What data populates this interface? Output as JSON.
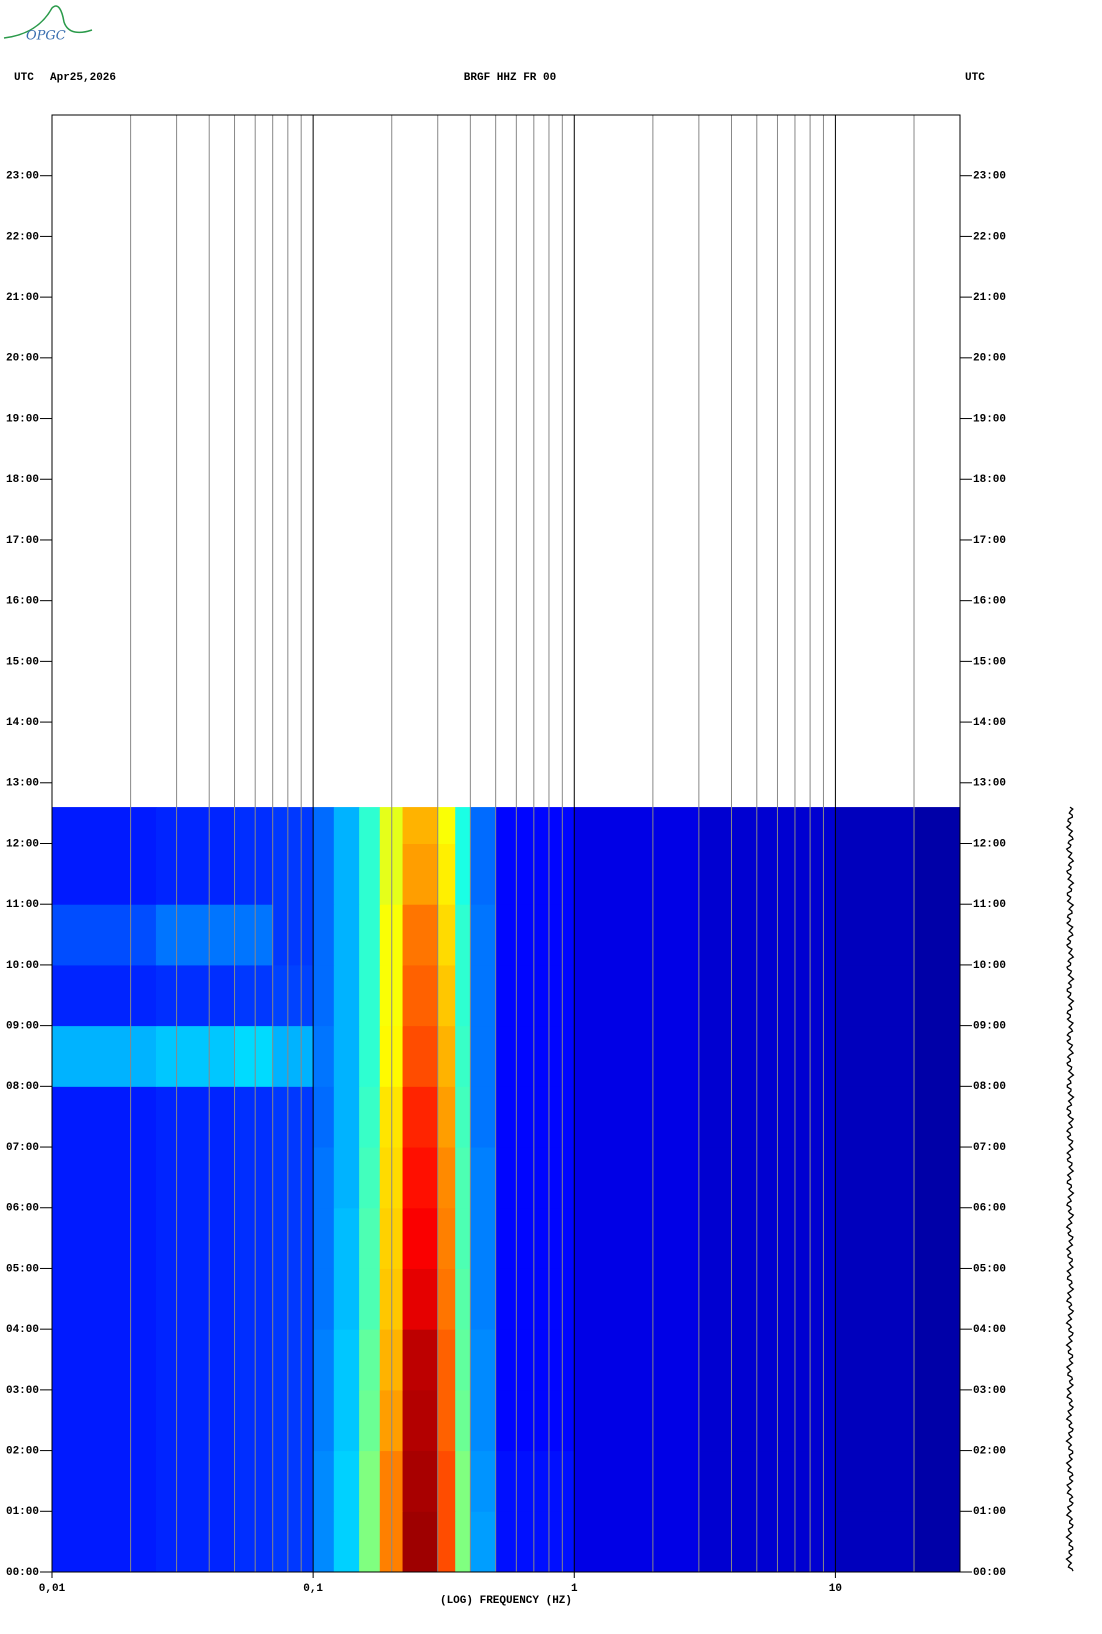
{
  "logo": "OPGC",
  "chart_data": {
    "type": "heatmap",
    "title": "BRGF HHZ FR 00",
    "timezone": "UTC",
    "date": "Apr25,2026",
    "xlabel": "(LOG) FREQUENCY (HZ)",
    "xscale": "log",
    "colormap": "jet",
    "xlim": [
      0.01,
      30
    ],
    "ylim": [
      0,
      24
    ],
    "xticks": [
      {
        "value": 0.01,
        "label": "0,01"
      },
      {
        "value": 0.1,
        "label": "0,1"
      },
      1,
      10
    ],
    "xgrid": [
      0.02,
      0.03,
      0.04,
      0.05,
      0.06,
      0.07,
      0.08,
      0.09,
      0.2,
      0.3,
      0.4,
      0.5,
      0.6,
      0.7,
      0.8,
      0.9,
      2,
      3,
      4,
      5,
      6,
      7,
      8,
      9,
      20
    ],
    "yticks": [
      {
        "value": 0,
        "label": "00:00"
      },
      {
        "value": 1,
        "label": "01:00"
      },
      {
        "value": 2,
        "label": "02:00"
      },
      {
        "value": 3,
        "label": "03:00"
      },
      {
        "value": 4,
        "label": "04:00"
      },
      {
        "value": 5,
        "label": "05:00"
      },
      {
        "value": 6,
        "label": "06:00"
      },
      {
        "value": 7,
        "label": "07:00"
      },
      {
        "value": 8,
        "label": "08:00"
      },
      {
        "value": 9,
        "label": "09:00"
      },
      {
        "value": 10,
        "label": "10:00"
      },
      {
        "value": 11,
        "label": "11:00"
      },
      {
        "value": 12,
        "label": "12:00"
      },
      {
        "value": 13,
        "label": "13:00"
      },
      {
        "value": 14,
        "label": "14:00"
      },
      {
        "value": 15,
        "label": "15:00"
      },
      {
        "value": 16,
        "label": "16:00"
      },
      {
        "value": 17,
        "label": "17:00"
      },
      {
        "value": 18,
        "label": "18:00"
      },
      {
        "value": 19,
        "label": "19:00"
      },
      {
        "value": 20,
        "label": "20:00"
      },
      {
        "value": 21,
        "label": "21:00"
      },
      {
        "value": 22,
        "label": "22:00"
      },
      {
        "value": 23,
        "label": "23:00"
      }
    ],
    "freq_bins": [
      0.01,
      0.025,
      0.05,
      0.07,
      0.1,
      0.12,
      0.15,
      0.18,
      0.22,
      0.3,
      0.35,
      0.4,
      0.5,
      1,
      3,
      10,
      20,
      30
    ],
    "time_bins": [
      0,
      1,
      2,
      3,
      4,
      5,
      6,
      7,
      8,
      9,
      10,
      11,
      12,
      12.6
    ],
    "values": [
      [
        0.15,
        0.16,
        0.17,
        0.18,
        0.26,
        0.33,
        0.5,
        0.75,
        0.97,
        0.8,
        0.5,
        0.28,
        0.14,
        0.1,
        0.08,
        0.06,
        0.04
      ],
      [
        0.15,
        0.16,
        0.17,
        0.18,
        0.26,
        0.33,
        0.5,
        0.75,
        0.96,
        0.8,
        0.5,
        0.27,
        0.14,
        0.1,
        0.08,
        0.06,
        0.04
      ],
      [
        0.15,
        0.16,
        0.17,
        0.18,
        0.25,
        0.32,
        0.48,
        0.72,
        0.95,
        0.78,
        0.48,
        0.26,
        0.13,
        0.1,
        0.08,
        0.06,
        0.04
      ],
      [
        0.15,
        0.16,
        0.17,
        0.18,
        0.25,
        0.32,
        0.47,
        0.7,
        0.94,
        0.78,
        0.47,
        0.26,
        0.13,
        0.1,
        0.08,
        0.06,
        0.04
      ],
      [
        0.15,
        0.16,
        0.17,
        0.18,
        0.24,
        0.31,
        0.45,
        0.68,
        0.9,
        0.76,
        0.46,
        0.25,
        0.13,
        0.1,
        0.08,
        0.06,
        0.04
      ],
      [
        0.15,
        0.16,
        0.17,
        0.18,
        0.24,
        0.31,
        0.45,
        0.67,
        0.88,
        0.75,
        0.45,
        0.25,
        0.13,
        0.1,
        0.08,
        0.06,
        0.04
      ],
      [
        0.15,
        0.16,
        0.17,
        0.18,
        0.24,
        0.3,
        0.44,
        0.66,
        0.86,
        0.74,
        0.45,
        0.25,
        0.13,
        0.1,
        0.08,
        0.06,
        0.04
      ],
      [
        0.15,
        0.16,
        0.17,
        0.18,
        0.23,
        0.3,
        0.43,
        0.65,
        0.84,
        0.72,
        0.44,
        0.24,
        0.13,
        0.1,
        0.08,
        0.06,
        0.04
      ],
      [
        0.3,
        0.32,
        0.34,
        0.3,
        0.24,
        0.3,
        0.42,
        0.63,
        0.8,
        0.7,
        0.43,
        0.24,
        0.13,
        0.1,
        0.08,
        0.06,
        0.04
      ],
      [
        0.16,
        0.17,
        0.18,
        0.19,
        0.23,
        0.3,
        0.42,
        0.62,
        0.78,
        0.68,
        0.42,
        0.24,
        0.13,
        0.1,
        0.08,
        0.06,
        0.04
      ],
      [
        0.2,
        0.24,
        0.24,
        0.18,
        0.23,
        0.3,
        0.42,
        0.62,
        0.76,
        0.66,
        0.42,
        0.24,
        0.13,
        0.1,
        0.08,
        0.06,
        0.04
      ],
      [
        0.15,
        0.16,
        0.17,
        0.18,
        0.23,
        0.3,
        0.42,
        0.6,
        0.72,
        0.64,
        0.4,
        0.23,
        0.13,
        0.1,
        0.08,
        0.06,
        0.04
      ],
      [
        0.15,
        0.16,
        0.17,
        0.18,
        0.23,
        0.3,
        0.42,
        0.6,
        0.7,
        0.62,
        0.4,
        0.23,
        0.13,
        0.1,
        0.08,
        0.06,
        0.04
      ]
    ]
  }
}
